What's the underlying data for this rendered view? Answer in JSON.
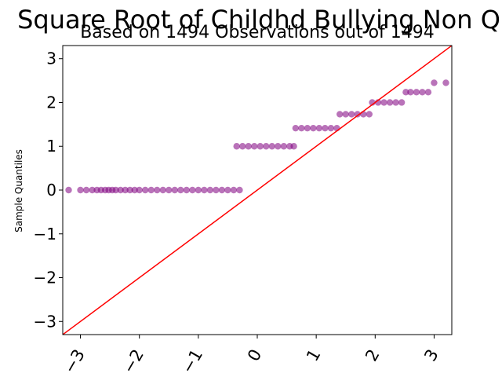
{
  "chart_data": {
    "type": "scatter",
    "title": "Square Root of Childhd Bullying Non Q",
    "subtitle": "Based on 1494 Observations out of 1494",
    "xlabel": "",
    "ylabel": "Sample Quantiles",
    "xlim": [
      -3.3,
      3.3
    ],
    "ylim": [
      -3.3,
      3.3
    ],
    "xticks": [
      -3,
      -2,
      -1,
      0,
      1,
      2,
      3
    ],
    "xtick_labels": [
      "−3",
      "−2",
      "−1",
      "0",
      "1",
      "2",
      "3"
    ],
    "yticks": [
      -3,
      -2,
      -1,
      0,
      1,
      2,
      3
    ],
    "ytick_labels": [
      "−3",
      "−2",
      "−1",
      "0",
      "1",
      "2",
      "3"
    ],
    "grid": false,
    "point_color": "#800080",
    "line_color": "#ff0000",
    "reference_line": {
      "x": [
        -3.3,
        3.3
      ],
      "y": [
        -3.3,
        3.3
      ]
    },
    "points": [
      {
        "x": -3.2,
        "y": 0
      },
      {
        "x": -3.0,
        "y": 0
      },
      {
        "x": -2.9,
        "y": 0
      },
      {
        "x": -2.8,
        "y": 0
      },
      {
        "x": -2.72,
        "y": 0
      },
      {
        "x": -2.65,
        "y": 0
      },
      {
        "x": -2.58,
        "y": 0
      },
      {
        "x": -2.52,
        "y": 0
      },
      {
        "x": -2.46,
        "y": 0
      },
      {
        "x": -2.4,
        "y": 0
      },
      {
        "x": -2.32,
        "y": 0
      },
      {
        "x": -2.24,
        "y": 0
      },
      {
        "x": -2.16,
        "y": 0
      },
      {
        "x": -2.08,
        "y": 0
      },
      {
        "x": -2.0,
        "y": 0
      },
      {
        "x": -1.9,
        "y": 0
      },
      {
        "x": -1.8,
        "y": 0
      },
      {
        "x": -1.7,
        "y": 0
      },
      {
        "x": -1.6,
        "y": 0
      },
      {
        "x": -1.5,
        "y": 0
      },
      {
        "x": -1.4,
        "y": 0
      },
      {
        "x": -1.3,
        "y": 0
      },
      {
        "x": -1.2,
        "y": 0
      },
      {
        "x": -1.1,
        "y": 0
      },
      {
        "x": -1.0,
        "y": 0
      },
      {
        "x": -0.9,
        "y": 0
      },
      {
        "x": -0.8,
        "y": 0
      },
      {
        "x": -0.7,
        "y": 0
      },
      {
        "x": -0.6,
        "y": 0
      },
      {
        "x": -0.5,
        "y": 0
      },
      {
        "x": -0.4,
        "y": 0
      },
      {
        "x": -0.3,
        "y": 0
      },
      {
        "x": -0.35,
        "y": 1
      },
      {
        "x": -0.25,
        "y": 1
      },
      {
        "x": -0.15,
        "y": 1
      },
      {
        "x": -0.05,
        "y": 1
      },
      {
        "x": 0.05,
        "y": 1
      },
      {
        "x": 0.15,
        "y": 1
      },
      {
        "x": 0.25,
        "y": 1
      },
      {
        "x": 0.35,
        "y": 1
      },
      {
        "x": 0.45,
        "y": 1
      },
      {
        "x": 0.55,
        "y": 1
      },
      {
        "x": 0.62,
        "y": 1
      },
      {
        "x": 0.65,
        "y": 1.414
      },
      {
        "x": 0.75,
        "y": 1.414
      },
      {
        "x": 0.85,
        "y": 1.414
      },
      {
        "x": 0.95,
        "y": 1.414
      },
      {
        "x": 1.05,
        "y": 1.414
      },
      {
        "x": 1.15,
        "y": 1.414
      },
      {
        "x": 1.25,
        "y": 1.414
      },
      {
        "x": 1.35,
        "y": 1.414
      },
      {
        "x": 1.4,
        "y": 1.732
      },
      {
        "x": 1.5,
        "y": 1.732
      },
      {
        "x": 1.6,
        "y": 1.732
      },
      {
        "x": 1.7,
        "y": 1.732
      },
      {
        "x": 1.8,
        "y": 1.732
      },
      {
        "x": 1.9,
        "y": 1.732
      },
      {
        "x": 1.95,
        "y": 2
      },
      {
        "x": 2.05,
        "y": 2
      },
      {
        "x": 2.15,
        "y": 2
      },
      {
        "x": 2.25,
        "y": 2
      },
      {
        "x": 2.35,
        "y": 2
      },
      {
        "x": 2.45,
        "y": 2
      },
      {
        "x": 2.52,
        "y": 2.236
      },
      {
        "x": 2.6,
        "y": 2.236
      },
      {
        "x": 2.7,
        "y": 2.236
      },
      {
        "x": 2.8,
        "y": 2.236
      },
      {
        "x": 2.9,
        "y": 2.236
      },
      {
        "x": 3.0,
        "y": 2.449
      },
      {
        "x": 3.2,
        "y": 2.449
      }
    ]
  }
}
